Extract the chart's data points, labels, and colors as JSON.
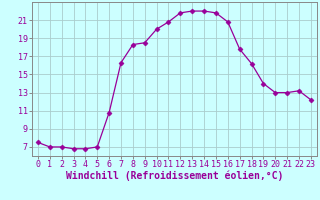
{
  "x": [
    0,
    1,
    2,
    3,
    4,
    5,
    6,
    7,
    8,
    9,
    10,
    11,
    12,
    13,
    14,
    15,
    16,
    17,
    18,
    19,
    20,
    21,
    22,
    23
  ],
  "y": [
    7.5,
    7.0,
    7.0,
    6.8,
    6.8,
    7.0,
    10.8,
    16.3,
    18.3,
    18.5,
    20.0,
    20.8,
    21.8,
    22.0,
    22.0,
    21.8,
    20.8,
    17.8,
    16.2,
    14.0,
    13.0,
    13.0,
    13.2,
    12.2
  ],
  "line_color": "#990099",
  "marker": "D",
  "marker_size": 2.5,
  "bg_color": "#ccffff",
  "grid_color": "#aacccc",
  "xlabel": "Windchill (Refroidissement éolien,°C)",
  "xlabel_fontsize": 7,
  "ylim": [
    6,
    23
  ],
  "xlim": [
    -0.5,
    23.5
  ],
  "yticks": [
    7,
    9,
    11,
    13,
    15,
    17,
    19,
    21
  ],
  "xticks": [
    0,
    1,
    2,
    3,
    4,
    5,
    6,
    7,
    8,
    9,
    10,
    11,
    12,
    13,
    14,
    15,
    16,
    17,
    18,
    19,
    20,
    21,
    22,
    23
  ],
  "tick_fontsize": 6,
  "spine_color": "#888888"
}
